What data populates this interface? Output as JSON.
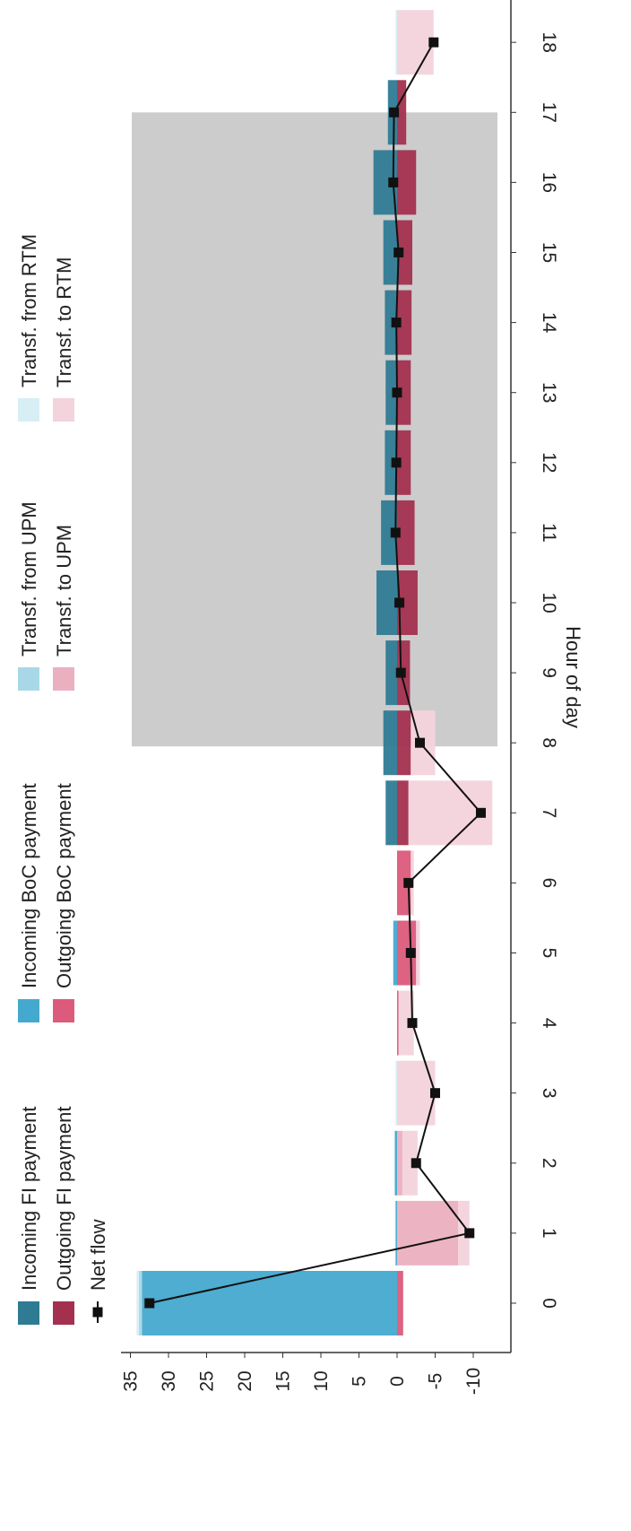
{
  "chart_data": {
    "type": "bar",
    "orientation": "rotated-90-clockwise",
    "xlabel": "Hour of day",
    "ylabel": "",
    "categories": [
      "0",
      "1",
      "2",
      "3",
      "4",
      "5",
      "6",
      "7",
      "8",
      "9",
      "10",
      "11",
      "12",
      "13",
      "14",
      "15",
      "16",
      "17",
      "18"
    ],
    "ylim": [
      -12,
      37
    ],
    "yticks": [
      35,
      30,
      25,
      20,
      15,
      10,
      5,
      0,
      -5,
      -10
    ],
    "shaded_hours": [
      8,
      17
    ],
    "shaded_color": "#cccccc",
    "series": [
      {
        "name": "Incoming FI payment",
        "color": "#2f7b94",
        "stack": "positive",
        "values": [
          0,
          0,
          0,
          0,
          0,
          0,
          0,
          1.5,
          1.8,
          1.5,
          2.7,
          2.1,
          1.6,
          1.5,
          1.6,
          1.8,
          3.1,
          1.2,
          0
        ]
      },
      {
        "name": "Incoming BoC payment",
        "color": "#45a9cf",
        "stack": "positive",
        "values": [
          33.5,
          0.2,
          0.3,
          0,
          0,
          0.5,
          0,
          0,
          0,
          0,
          0,
          0,
          0,
          0,
          0,
          0,
          0,
          0,
          0
        ]
      },
      {
        "name": "Transf. from UPM",
        "color": "#a8d8e8",
        "stack": "positive",
        "values": [
          0.4,
          0,
          0,
          0,
          0,
          0,
          0,
          0,
          0,
          0,
          0,
          0,
          0,
          0,
          0,
          0,
          0,
          0,
          0
        ]
      },
      {
        "name": "Transf. from RTM",
        "color": "#d8eef5",
        "stack": "positive",
        "values": [
          0.3,
          0.1,
          0,
          0.2,
          0,
          0,
          0,
          0,
          0,
          0,
          0,
          0,
          0,
          0,
          0,
          0,
          0,
          0,
          0.2
        ]
      },
      {
        "name": "Outgoing FI payment",
        "color": "#a3304f",
        "stack": "negative",
        "values": [
          0,
          0,
          0,
          0,
          0,
          0,
          0,
          -1.5,
          -1.8,
          -1.7,
          -2.7,
          -2.3,
          -1.8,
          -1.8,
          -1.9,
          -2.0,
          -2.5,
          -1.2,
          0
        ]
      },
      {
        "name": "Outgoing BoC payment",
        "color": "#dc5a7b",
        "stack": "negative",
        "values": [
          -0.8,
          0,
          0,
          0,
          -0.2,
          -2.5,
          -1.8,
          0,
          0,
          0,
          0,
          0,
          0,
          0,
          0,
          0,
          0,
          0,
          0
        ]
      },
      {
        "name": "Transf. to UPM",
        "color": "#ebb0c0",
        "stack": "negative",
        "values": [
          0,
          -8.0,
          -0.7,
          0,
          0,
          0,
          0,
          0,
          0,
          0,
          0,
          0,
          0,
          0,
          0,
          0,
          0,
          0,
          0
        ]
      },
      {
        "name": "Transf. to RTM",
        "color": "#f3d3dc",
        "stack": "negative",
        "values": [
          0,
          -1.5,
          -2.0,
          -5.0,
          -2.0,
          -0.5,
          -0.4,
          -11.0,
          -3.2,
          0,
          0,
          0,
          0,
          0,
          0,
          0,
          0,
          0,
          -4.8
        ]
      }
    ],
    "line": {
      "name": "Net flow",
      "color": "#111111",
      "values": [
        32.5,
        -9.5,
        -2.5,
        -5.0,
        -2.0,
        -1.8,
        -1.5,
        -11.0,
        -3.0,
        -0.5,
        -0.3,
        0.2,
        0.1,
        0.0,
        0.1,
        -0.2,
        0.5,
        0.4,
        -4.8
      ]
    },
    "legend_position": "top",
    "grid": false
  }
}
